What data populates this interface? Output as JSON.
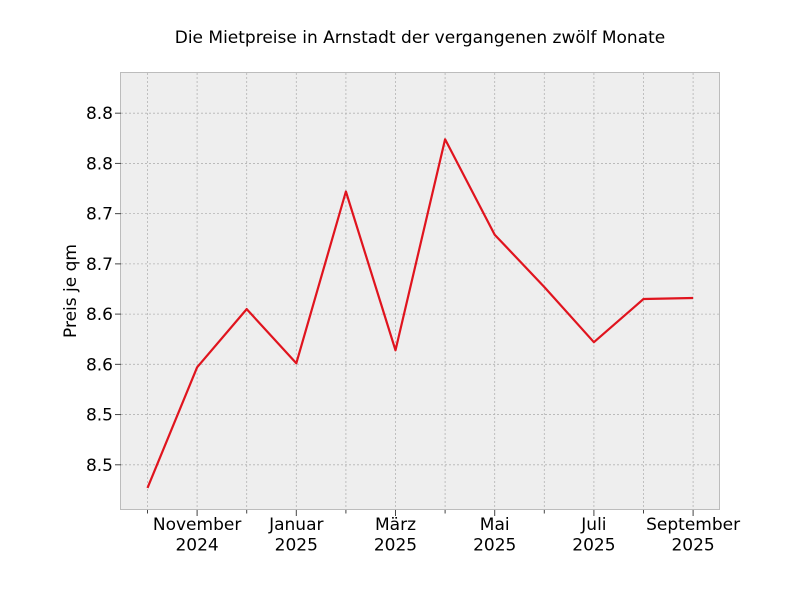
{
  "chart_data": {
    "type": "line",
    "title": "Die Mietpreise in Arnstadt der vergangenen zwölf Monate",
    "xlabel": "",
    "ylabel": "Preis je qm",
    "x_tick_labels": [
      [
        "November",
        "2024"
      ],
      [
        "Januar",
        "2025"
      ],
      [
        "März",
        "2025"
      ],
      [
        "Mai",
        "2025"
      ],
      [
        "Juli",
        "2025"
      ],
      [
        "September",
        "2025"
      ]
    ],
    "y_tick_labels": [
      "8.5",
      "8.5",
      "8.6",
      "8.6",
      "8.7",
      "8.7",
      "8.8",
      "8.8"
    ],
    "y_ticks": [
      8.475,
      8.525,
      8.575,
      8.625,
      8.675,
      8.725,
      8.775,
      8.825
    ],
    "ylim": [
      8.43,
      8.865
    ],
    "grid": true,
    "series": [
      {
        "color": "#e0141e",
        "x": [
          "2024-10",
          "2024-11",
          "2024-12",
          "2025-01",
          "2025-02",
          "2025-03",
          "2025-04",
          "2025-05",
          "2025-06",
          "2025-07",
          "2025-08",
          "2025-09"
        ],
        "values": [
          8.452,
          8.572,
          8.63,
          8.576,
          8.747,
          8.589,
          8.799,
          8.704,
          8.652,
          8.597,
          8.64,
          8.641
        ]
      }
    ]
  }
}
